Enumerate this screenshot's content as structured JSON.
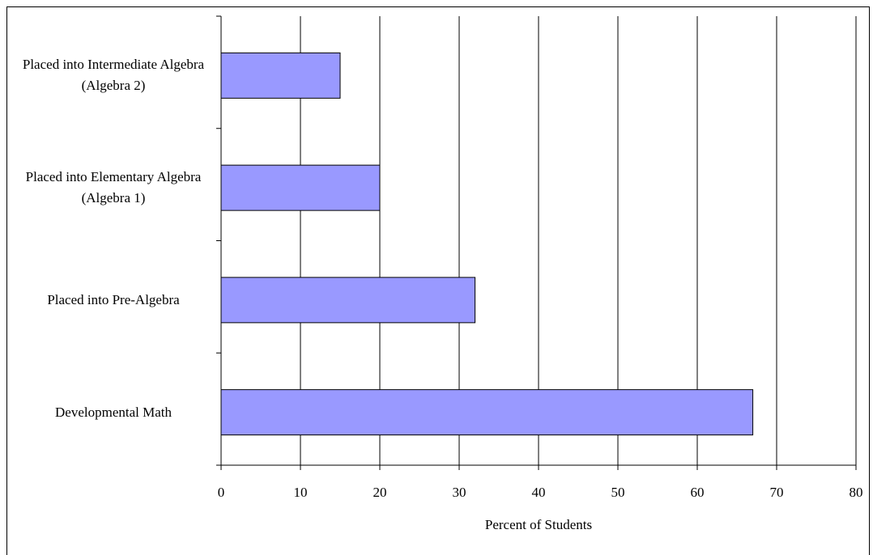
{
  "chart_data": {
    "type": "barh",
    "xlabel": "Percent of Students",
    "categories": [
      "Placed into Intermediate Algebra (Algebra 2)",
      "Placed into Elementary Algebra (Algebra 1)",
      "Placed into Pre-Algebra",
      "Developmental Math"
    ],
    "values": [
      15,
      20,
      32,
      67
    ],
    "color": "#9999ff",
    "xlim": [
      0,
      80
    ],
    "xticks": [
      0,
      10,
      20,
      30,
      40,
      50,
      60,
      70,
      80
    ],
    "grid": true
  }
}
